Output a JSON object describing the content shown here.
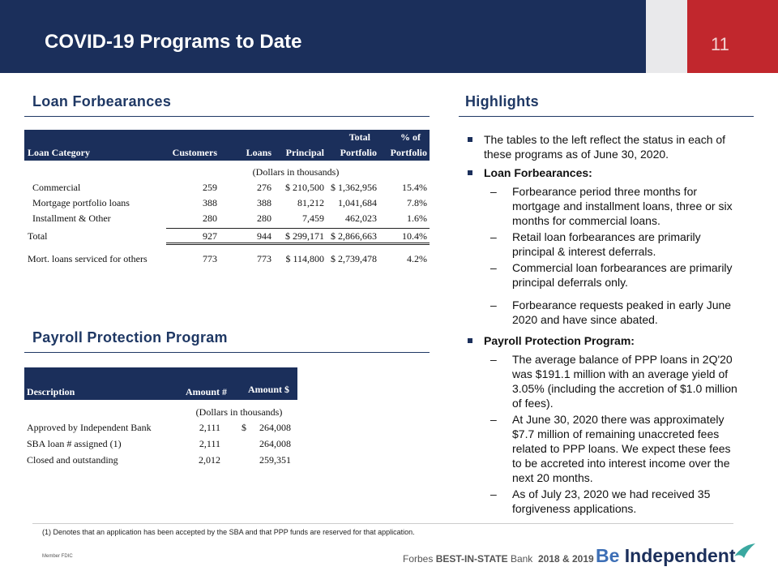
{
  "header": {
    "title": "COVID-19 Programs to Date",
    "page_number": "11"
  },
  "loan_forbearances": {
    "title": "Loan Forbearances",
    "columns": [
      "Loan Category",
      "Customers",
      "Loans",
      "Principal",
      [
        "Total",
        "Portfolio"
      ],
      [
        "% of",
        "Portfolio"
      ]
    ],
    "units_note": "(Dollars in thousands)",
    "rows": [
      {
        "label": "Commercial",
        "cells": [
          "259",
          "276",
          "$ 210,500",
          "$ 1,362,956",
          "15.4%"
        ]
      },
      {
        "label": "Mortgage portfolio loans",
        "cells": [
          "388",
          "388",
          "81,212",
          "1,041,684",
          "7.8%"
        ]
      },
      {
        "label": "Installment & Other",
        "cells": [
          "280",
          "280",
          "7,459",
          "462,023",
          "1.6%"
        ]
      },
      {
        "label": "Total",
        "cells": [
          "927",
          "944",
          "$ 299,171",
          "$ 2,866,663",
          "10.4%"
        ]
      },
      {
        "label": "Mort. loans serviced for others",
        "cells": [
          "773",
          "773",
          "$ 114,800",
          "$ 2,739,478",
          "4.2%"
        ]
      }
    ]
  },
  "payroll_protection": {
    "title": "Payroll Protection Program",
    "columns": [
      "Description",
      "Amount #",
      "Amount $"
    ],
    "units_note": "(Dollars in thousands)",
    "rows": [
      {
        "label": "Approved by Independent Bank",
        "count": "2,111",
        "currency": "$",
        "amount": "264,008"
      },
      {
        "label": "SBA loan # assigned (1)",
        "count": "2,111",
        "amount": "264,008"
      },
      {
        "label": "Closed and outstanding",
        "count": "2,012",
        "amount": "259,351"
      }
    ]
  },
  "highlights": {
    "title": "Highlights",
    "bullets": [
      {
        "text": "The tables to the left reflect the status in each of these programs as of June 30, 2020."
      },
      {
        "text": "Loan Forbearances:",
        "subs": [
          "Forbearance period three months for mortgage and installment loans, three or six months for commercial loans.",
          "Retail loan forbearances are primarily principal & interest deferrals.",
          "Commercial loan forbearances are primarily principal deferrals only.",
          "Forbearance requests peaked in early June 2020 and have since abated."
        ]
      },
      {
        "text": "Payroll Protection Program:",
        "subs": [
          "The average balance of PPP loans in 2Q'20 was $191.1 million with an average yield of 3.05% (including the accretion of $1.0 million of fees).",
          "At June 30, 2020 there was approximately $7.7 million of remaining unaccreted fees related to PPP loans.  We expect these fees to be accreted into interest income over the next 20 months.",
          "As of July 23, 2020 we had received 35 forgiveness applications."
        ]
      }
    ]
  },
  "footnote": "(1) Denotes that an application has been accepted by the SBA and that PPP funds are reserved for that application.",
  "footer": {
    "fdic": "Member FDIC",
    "award": {
      "brand": "Forbes",
      "award": "BEST-IN-STATE",
      "suffix": "Bank",
      "years": "2018 & 2019"
    },
    "logo": {
      "be": "Be",
      "name": "Independent"
    }
  }
}
